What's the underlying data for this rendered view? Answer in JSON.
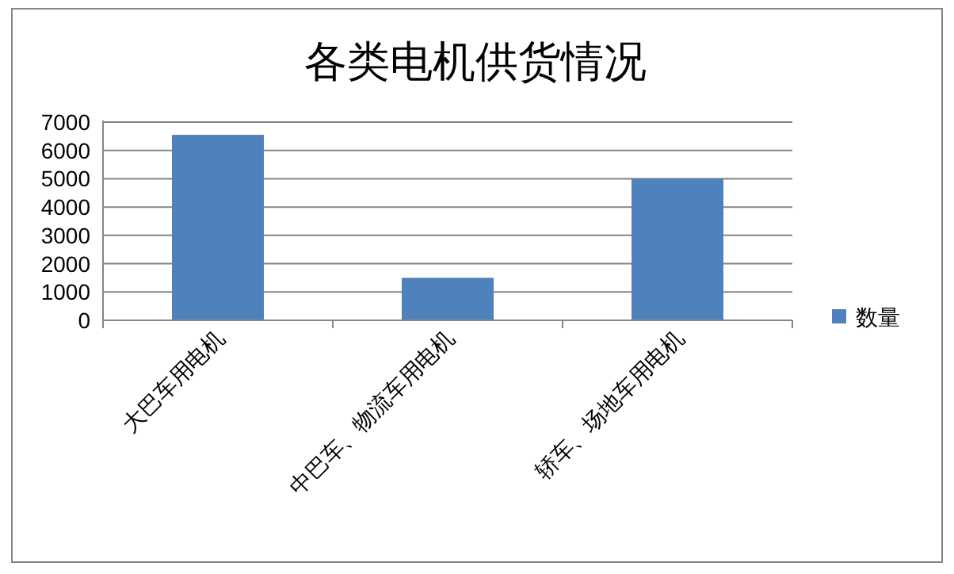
{
  "chart_data": {
    "type": "bar",
    "title": "各类电机供货情况",
    "categories": [
      "大巴车用电机",
      "中巴车、物流车用电机",
      "轿车、场地车用电机"
    ],
    "series": [
      {
        "name": "数量",
        "color": "#4f81bd",
        "values": [
          6550,
          1500,
          5000
        ]
      }
    ],
    "ylim": [
      0,
      7000
    ],
    "yticks": [
      0,
      1000,
      2000,
      3000,
      4000,
      5000,
      6000,
      7000
    ],
    "grid": "y",
    "legend": "right"
  }
}
